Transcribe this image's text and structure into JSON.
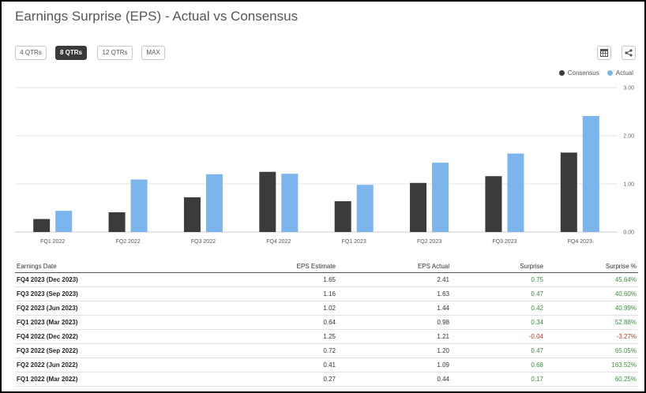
{
  "title": "Earnings Surprise (EPS) - Actual vs Consensus",
  "range_buttons": [
    {
      "label": "4 QTRs",
      "active": false
    },
    {
      "label": "8 QTRs",
      "active": true
    },
    {
      "label": "12 QTRs",
      "active": false
    },
    {
      "label": "MAX",
      "active": false
    }
  ],
  "icons": {
    "table": "table-icon",
    "share": "share-icon"
  },
  "colors": {
    "consensus": "#3b3b3d",
    "actual": "#7cb5ec",
    "positive": "#3d8f3d",
    "negative": "#c0392b",
    "grid": "#e6e6e6"
  },
  "chart_data": {
    "type": "bar",
    "title": "Earnings Surprise (EPS) - Actual vs Consensus",
    "categories": [
      "FQ1 2022",
      "FQ2 2022",
      "FQ3 2022",
      "FQ4 2022",
      "FQ1 2023",
      "FQ2 2023",
      "FQ3 2023",
      "FQ4 2023"
    ],
    "series": [
      {
        "name": "Consensus",
        "values": [
          0.27,
          0.41,
          0.72,
          1.25,
          0.64,
          1.02,
          1.16,
          1.65
        ]
      },
      {
        "name": "Actual",
        "values": [
          0.44,
          1.09,
          1.2,
          1.21,
          0.98,
          1.44,
          1.63,
          2.41
        ]
      }
    ],
    "yticks": [
      "0.00",
      "1.00",
      "2.00",
      "3.00"
    ],
    "ylim": [
      0,
      3
    ],
    "xlabel": "",
    "ylabel": "",
    "legend": "top-right",
    "y_axis_side": "right",
    "grid": true
  },
  "table": {
    "headers": [
      "Earnings Date",
      "EPS Estimate",
      "EPS Actual",
      "Surprise",
      "Surprise %"
    ],
    "rows": [
      {
        "date": "FQ4 2023 (Dec 2023)",
        "estimate": "1.65",
        "actual": "2.41",
        "surprise": "0.75",
        "surprise_pct": "45.64%",
        "sign": "pos"
      },
      {
        "date": "FQ3 2023 (Sep 2023)",
        "estimate": "1.16",
        "actual": "1.63",
        "surprise": "0.47",
        "surprise_pct": "40.60%",
        "sign": "pos"
      },
      {
        "date": "FQ2 2023 (Jun 2023)",
        "estimate": "1.02",
        "actual": "1.44",
        "surprise": "0.42",
        "surprise_pct": "40.99%",
        "sign": "pos"
      },
      {
        "date": "FQ1 2023 (Mar 2023)",
        "estimate": "0.64",
        "actual": "0.98",
        "surprise": "0.34",
        "surprise_pct": "52.88%",
        "sign": "pos"
      },
      {
        "date": "FQ4 2022 (Dec 2022)",
        "estimate": "1.25",
        "actual": "1.21",
        "surprise": "-0.04",
        "surprise_pct": "-3.27%",
        "sign": "neg"
      },
      {
        "date": "FQ3 2022 (Sep 2022)",
        "estimate": "0.72",
        "actual": "1.20",
        "surprise": "0.47",
        "surprise_pct": "65.05%",
        "sign": "pos"
      },
      {
        "date": "FQ2 2022 (Jun 2022)",
        "estimate": "0.41",
        "actual": "1.09",
        "surprise": "0.68",
        "surprise_pct": "163.52%",
        "sign": "pos"
      },
      {
        "date": "FQ1 2022 (Mar 2022)",
        "estimate": "0.27",
        "actual": "0.44",
        "surprise": "0.17",
        "surprise_pct": "60.25%",
        "sign": "pos"
      }
    ]
  }
}
